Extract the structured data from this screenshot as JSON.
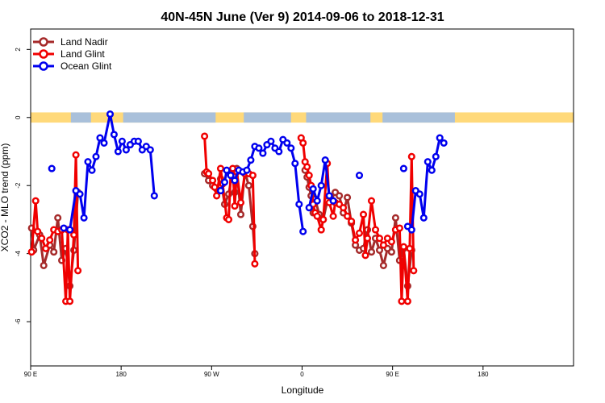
{
  "chart_data": {
    "type": "line",
    "title": "40N-45N June (Ver 9)   2014-09-06 to 2018-12-31",
    "xlabel": "Longitude",
    "ylabel": "XCO2 - MLO trend (ppm)",
    "xlim": [
      -90,
      180
    ],
    "ylim": [
      -7.3,
      2.6
    ],
    "x_ticks": [
      {
        "value": -90,
        "label": "90 E"
      },
      {
        "value": -45,
        "label": "180"
      },
      {
        "value": 0,
        "label": "90 W"
      },
      {
        "value": 45,
        "label": "0"
      },
      {
        "value": 90,
        "label": "90 E"
      },
      {
        "value": 135,
        "label": "180"
      }
    ],
    "y_ticks": [
      {
        "value": 2,
        "label": "2"
      },
      {
        "value": 0,
        "label": "0"
      },
      {
        "value": -2,
        "label": "-2"
      },
      {
        "value": -4,
        "label": "-4"
      },
      {
        "value": -6,
        "label": "-6"
      }
    ],
    "grid": false,
    "legend_position": "top-left",
    "land_sea_strip": {
      "y_range": [
        -0.15,
        0.15
      ],
      "land_color": "#FFD97A",
      "ocean_color": "#A9C0DA",
      "ocean_segments": [
        [
          -70,
          -60
        ],
        [
          -44,
          2
        ],
        [
          16,
          39.5
        ],
        [
          47,
          79
        ],
        [
          85,
          121
        ]
      ]
    },
    "series": [
      {
        "name": "Land Nadir",
        "color": "#A52A2A",
        "points": [
          [
            -89.5,
            -3.25
          ],
          [
            -88.5,
            -3.9
          ],
          [
            -85.5,
            -3.45
          ],
          [
            -83.5,
            -4.35
          ],
          [
            -80.5,
            -3.75
          ],
          [
            -78.5,
            -3.95
          ],
          [
            -76.5,
            -2.95
          ],
          [
            -74.5,
            -4.2
          ],
          [
            -72.5,
            -3.85
          ],
          [
            -70.5,
            -4.95
          ],
          [
            -68.5,
            -3.9
          ],
          [
            -66.5,
            -2.2
          ],
          null,
          [
            -3.5,
            -1.65
          ],
          [
            -1.5,
            -1.85
          ],
          [
            0.5,
            -2.0
          ],
          [
            2.5,
            -2.1
          ],
          [
            4.5,
            -1.8
          ],
          [
            6.5,
            -2.55
          ],
          [
            8.5,
            -2.25
          ],
          [
            10.5,
            -1.55
          ],
          [
            11.5,
            -2.2
          ],
          [
            12.5,
            -1.5
          ],
          [
            14.5,
            -2.85
          ],
          [
            16.5,
            -1.6
          ],
          [
            18.5,
            -2.0
          ],
          [
            20.5,
            -3.2
          ],
          [
            21.5,
            -4.0
          ],
          null,
          [
            46.5,
            -1.55
          ],
          [
            47.5,
            -1.75
          ],
          [
            48.5,
            -2.05
          ],
          [
            49.5,
            -2.3
          ],
          [
            50.5,
            -2.8
          ],
          [
            51.5,
            -2.4
          ],
          [
            53.5,
            -2.85
          ],
          [
            55.5,
            -3.0
          ],
          [
            57.5,
            -2.45
          ],
          [
            59.5,
            -2.4
          ],
          [
            61.5,
            -2.2
          ],
          [
            63.5,
            -2.3
          ],
          [
            65.5,
            -2.8
          ],
          [
            67.5,
            -2.35
          ],
          [
            69.5,
            -3.1
          ],
          [
            71.5,
            -3.75
          ],
          [
            73.5,
            -3.9
          ],
          [
            75.5,
            -3.85
          ],
          [
            77.5,
            -3.3
          ],
          [
            79.5,
            -3.95
          ],
          [
            81.5,
            -3.55
          ],
          [
            83.5,
            -3.9
          ],
          [
            85.5,
            -4.35
          ],
          [
            87.5,
            -3.85
          ],
          [
            89.5,
            -3.95
          ],
          [
            91.5,
            -2.95
          ],
          [
            93.5,
            -4.2
          ],
          [
            95.5,
            -3.85
          ],
          [
            97.5,
            -4.95
          ],
          [
            99.5,
            -3.9
          ]
        ]
      },
      {
        "name": "Land Glint",
        "color": "#F00000",
        "points": [
          [
            -89.5,
            -3.95
          ],
          [
            -87.5,
            -2.45
          ],
          [
            -86.5,
            -3.35
          ],
          [
            -84.5,
            -3.55
          ],
          [
            -82.5,
            -3.85
          ],
          [
            -80.5,
            -3.6
          ],
          [
            -78.5,
            -3.3
          ],
          [
            -76.5,
            -3.35
          ],
          [
            -74.5,
            -3.3
          ],
          [
            -72.5,
            -5.4
          ],
          [
            -71.5,
            -3.3
          ],
          [
            -70.5,
            -5.4
          ],
          [
            -68.5,
            -3.45
          ],
          [
            -67.5,
            -1.1
          ],
          [
            -66.5,
            -4.5
          ],
          null,
          [
            -3.5,
            -0.55
          ],
          [
            -2.5,
            -1.6
          ],
          [
            -1.5,
            -1.65
          ],
          [
            0.5,
            -1.85
          ],
          [
            1.5,
            -2.05
          ],
          [
            2.5,
            -2.3
          ],
          [
            4.5,
            -1.5
          ],
          [
            5.5,
            -1.95
          ],
          [
            7.5,
            -2.95
          ],
          [
            8.5,
            -3.0
          ],
          [
            9.5,
            -1.65
          ],
          [
            10.5,
            -1.5
          ],
          [
            11.5,
            -2.6
          ],
          [
            12.5,
            -1.6
          ],
          [
            14.5,
            -2.5
          ],
          [
            16.5,
            -1.65
          ],
          [
            18.5,
            -1.65
          ],
          [
            20.5,
            -1.7
          ],
          [
            21.5,
            -4.3
          ],
          null,
          [
            44.5,
            -0.6
          ],
          [
            45.5,
            -0.75
          ],
          [
            46.5,
            -1.3
          ],
          [
            47.5,
            -1.45
          ],
          [
            48.5,
            -1.7
          ],
          [
            49.5,
            -2.0
          ],
          [
            50.5,
            -2.55
          ],
          [
            51.5,
            -2.8
          ],
          [
            52.5,
            -2.9
          ],
          [
            54.5,
            -3.3
          ],
          [
            55.5,
            -3.0
          ],
          [
            57.5,
            -1.35
          ],
          [
            58.5,
            -2.5
          ],
          [
            60.5,
            -2.9
          ],
          [
            61.5,
            -2.5
          ],
          [
            63.5,
            -2.55
          ],
          [
            65.5,
            -2.65
          ],
          [
            67.5,
            -2.9
          ],
          [
            69.5,
            -3.05
          ],
          [
            71.5,
            -3.6
          ],
          [
            73.5,
            -3.4
          ],
          [
            75.5,
            -2.85
          ],
          [
            76.5,
            -4.05
          ],
          [
            77.5,
            -3.55
          ],
          [
            79.5,
            -2.45
          ],
          [
            81.5,
            -3.3
          ],
          [
            83.5,
            -3.55
          ],
          [
            85.5,
            -3.75
          ],
          [
            87.5,
            -3.55
          ],
          [
            89.5,
            -3.65
          ],
          [
            91.5,
            -3.3
          ],
          [
            93.5,
            -3.25
          ],
          [
            94.5,
            -5.4
          ],
          [
            95.5,
            -3.8
          ],
          [
            97.5,
            -5.4
          ],
          [
            98.5,
            -3.85
          ],
          [
            99.5,
            -1.15
          ],
          [
            100.5,
            -4.5
          ]
        ]
      },
      {
        "name": "Ocean Glint",
        "color": "#0000EE",
        "points": [
          [
            -79.5,
            -1.5
          ],
          null,
          [
            -73.5,
            -3.25
          ],
          [
            -70.5,
            -3.3
          ],
          [
            -67.5,
            -2.15
          ],
          [
            -65.5,
            -2.25
          ],
          [
            -63.5,
            -2.95
          ],
          [
            -61.5,
            -1.3
          ],
          [
            -59.5,
            -1.55
          ],
          [
            -57.5,
            -1.15
          ],
          [
            -55.5,
            -0.6
          ],
          [
            -53.5,
            -0.75
          ],
          [
            -50.5,
            0.1
          ],
          [
            -48.5,
            -0.5
          ],
          [
            -46.5,
            -1.0
          ],
          [
            -44.5,
            -0.7
          ],
          [
            -42.5,
            -0.95
          ],
          [
            -40.5,
            -0.8
          ],
          [
            -38.5,
            -0.7
          ],
          [
            -36.5,
            -0.7
          ],
          [
            -34.5,
            -0.95
          ],
          [
            -32.5,
            -0.85
          ],
          [
            -30.5,
            -0.95
          ],
          [
            -28.5,
            -2.3
          ],
          null,
          [
            4.5,
            -2.15
          ],
          [
            6.5,
            -1.9
          ],
          [
            7.5,
            -1.55
          ],
          [
            9.5,
            -1.7
          ],
          [
            11.5,
            -1.85
          ],
          [
            13.5,
            -1.55
          ],
          [
            15.5,
            -1.6
          ],
          [
            17.5,
            -1.55
          ],
          [
            19.5,
            -1.25
          ],
          [
            21.5,
            -0.85
          ],
          [
            23.5,
            -0.9
          ],
          [
            25.5,
            -1.05
          ],
          [
            27.5,
            -0.8
          ],
          [
            29.5,
            -0.7
          ],
          [
            31.5,
            -0.9
          ],
          [
            33.5,
            -1.0
          ],
          [
            35.5,
            -0.65
          ],
          [
            37.5,
            -0.75
          ],
          [
            39.5,
            -0.9
          ],
          [
            41.5,
            -1.35
          ],
          [
            43.5,
            -2.55
          ],
          [
            45.5,
            -3.35
          ],
          null,
          [
            48.5,
            -2.65
          ],
          [
            50.5,
            -2.1
          ],
          [
            52.5,
            -2.45
          ],
          [
            54.5,
            -2.0
          ],
          [
            56.5,
            -1.25
          ],
          [
            58.5,
            -2.3
          ],
          [
            60.5,
            -2.45
          ],
          null,
          [
            73.5,
            -1.7
          ],
          null,
          [
            95.5,
            -1.5
          ],
          null,
          [
            97.5,
            -3.2
          ],
          [
            99.5,
            -3.3
          ],
          [
            101.5,
            -2.15
          ],
          [
            103.5,
            -2.25
          ],
          [
            105.5,
            -2.95
          ],
          [
            107.5,
            -1.3
          ],
          [
            109.5,
            -1.55
          ],
          [
            111.5,
            -1.15
          ],
          [
            113.5,
            -0.6
          ],
          [
            115.5,
            -0.75
          ]
        ]
      }
    ]
  }
}
